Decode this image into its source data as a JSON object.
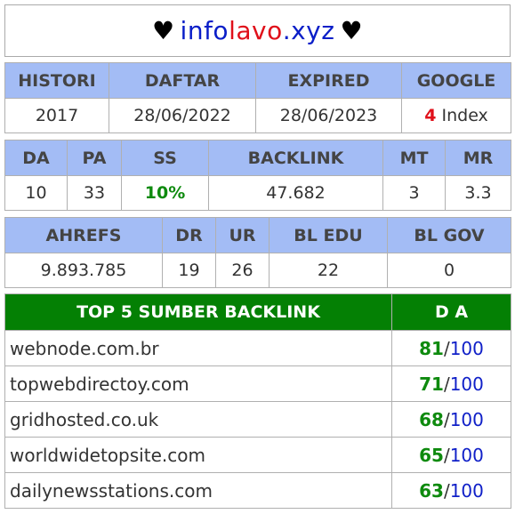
{
  "title": {
    "left_heart": "♥",
    "right_heart": "♥",
    "part1": "info",
    "part2": "lavo",
    "part3": ".xyz"
  },
  "table1": {
    "headers": [
      "HISTORI",
      "DAFTAR",
      "EXPIRED",
      "GOOGLE"
    ],
    "historI": "2017",
    "daftar": "28/06/2022",
    "expired": "28/06/2023",
    "google_count": "4",
    "google_label": "Index"
  },
  "table2": {
    "headers": [
      "DA",
      "PA",
      "SS",
      "BACKLINK",
      "MT",
      "MR"
    ],
    "values": [
      "10",
      "33",
      "10%",
      "47.682",
      "3",
      "3.3"
    ]
  },
  "table3": {
    "headers": [
      "AHREFS",
      "DR",
      "UR",
      "BL EDU",
      "BL GOV"
    ],
    "values": [
      "9.893.785",
      "19",
      "26",
      "22",
      "0"
    ]
  },
  "table4": {
    "headers": [
      "TOP 5 SUMBER BACKLINK",
      "D A"
    ],
    "sep": "/",
    "max": "100",
    "rows": [
      {
        "domain": "webnode.com.br",
        "da": "81"
      },
      {
        "domain": "topwebdirectoy.com",
        "da": "71"
      },
      {
        "domain": "gridhosted.co.uk",
        "da": "68"
      },
      {
        "domain": "worldwidetopsite.com",
        "da": "65"
      },
      {
        "domain": "dailynewsstations.com",
        "da": "63"
      }
    ]
  },
  "colors": {
    "header_blue": "#a3bcf5",
    "header_green": "#048004",
    "accent_red": "#e0101a",
    "accent_green": "#0e8a0e",
    "accent_blue": "#1020c8"
  }
}
